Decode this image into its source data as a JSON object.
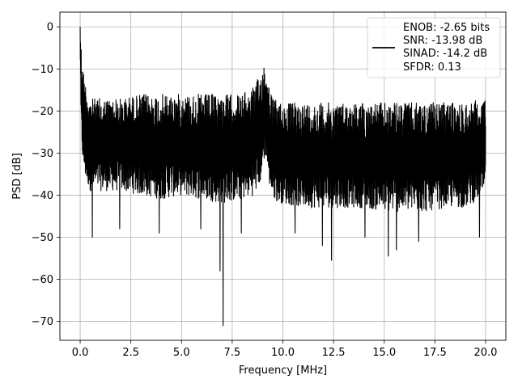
{
  "chart_data": {
    "type": "line",
    "xlabel": "Frequency [MHz]",
    "ylabel": "PSD [dB]",
    "xlim": [
      -1.0,
      21.0
    ],
    "ylim": [
      -74.5,
      3.5
    ],
    "xticks": [
      0.0,
      2.5,
      5.0,
      7.5,
      10.0,
      12.5,
      15.0,
      17.5,
      20.0
    ],
    "xtick_labels": [
      "0.0",
      "2.5",
      "5.0",
      "7.5",
      "10.0",
      "12.5",
      "15.0",
      "17.5",
      "20.0"
    ],
    "yticks": [
      0,
      -10,
      -20,
      -30,
      -40,
      -50,
      -60,
      -70
    ],
    "ytick_labels": [
      "0",
      "−10",
      "−20",
      "−30",
      "−40",
      "−50",
      "−60",
      "−70"
    ],
    "grid": true,
    "legend_position": "top-right",
    "legend": {
      "lines": [
        "ENOB: -2.65 bits",
        "SNR: -13.98 dB",
        "SINAD: -14.2 dB",
        "SFDR: 0.13"
      ]
    },
    "series": [
      {
        "color": "#000000",
        "envelope": {
          "x": [
            0.0,
            0.05,
            0.15,
            0.3,
            0.5,
            1.0,
            2.0,
            3.0,
            4.0,
            5.0,
            6.0,
            7.0,
            8.0,
            8.6,
            8.9,
            9.05,
            9.15,
            9.3,
            9.5,
            10.0,
            11.0,
            12.0,
            13.0,
            14.0,
            15.0,
            16.0,
            17.0,
            18.0,
            19.0,
            20.0
          ],
          "upper": [
            0.0,
            -4,
            -10,
            -14,
            -17,
            -17,
            -17,
            -16,
            -16,
            -16,
            -16,
            -16,
            -16,
            -14,
            -11,
            -8,
            -10,
            -13,
            -17,
            -18,
            -18,
            -18,
            -18,
            -18,
            -18,
            -18,
            -18,
            -18,
            -18,
            -17
          ],
          "lower": [
            -5,
            -27,
            -34,
            -37,
            -39,
            -39,
            -39,
            -40,
            -41,
            -40,
            -41,
            -42,
            -41,
            -40,
            -37,
            -33,
            -30,
            -37,
            -41,
            -42,
            -43,
            -43,
            -43,
            -43,
            -44,
            -44,
            -44,
            -43,
            -43,
            -40
          ]
        },
        "spikes_low": [
          {
            "x": 0.6,
            "y": -50
          },
          {
            "x": 1.95,
            "y": -48
          },
          {
            "x": 3.9,
            "y": -49
          },
          {
            "x": 5.95,
            "y": -48
          },
          {
            "x": 6.9,
            "y": -58
          },
          {
            "x": 7.05,
            "y": -71
          },
          {
            "x": 7.95,
            "y": -49
          },
          {
            "x": 10.6,
            "y": -49
          },
          {
            "x": 11.95,
            "y": -52
          },
          {
            "x": 12.4,
            "y": -55.5
          },
          {
            "x": 14.05,
            "y": -50
          },
          {
            "x": 15.2,
            "y": -54.5
          },
          {
            "x": 15.6,
            "y": -53
          },
          {
            "x": 16.7,
            "y": -51
          },
          {
            "x": 19.7,
            "y": -50
          }
        ]
      }
    ]
  }
}
